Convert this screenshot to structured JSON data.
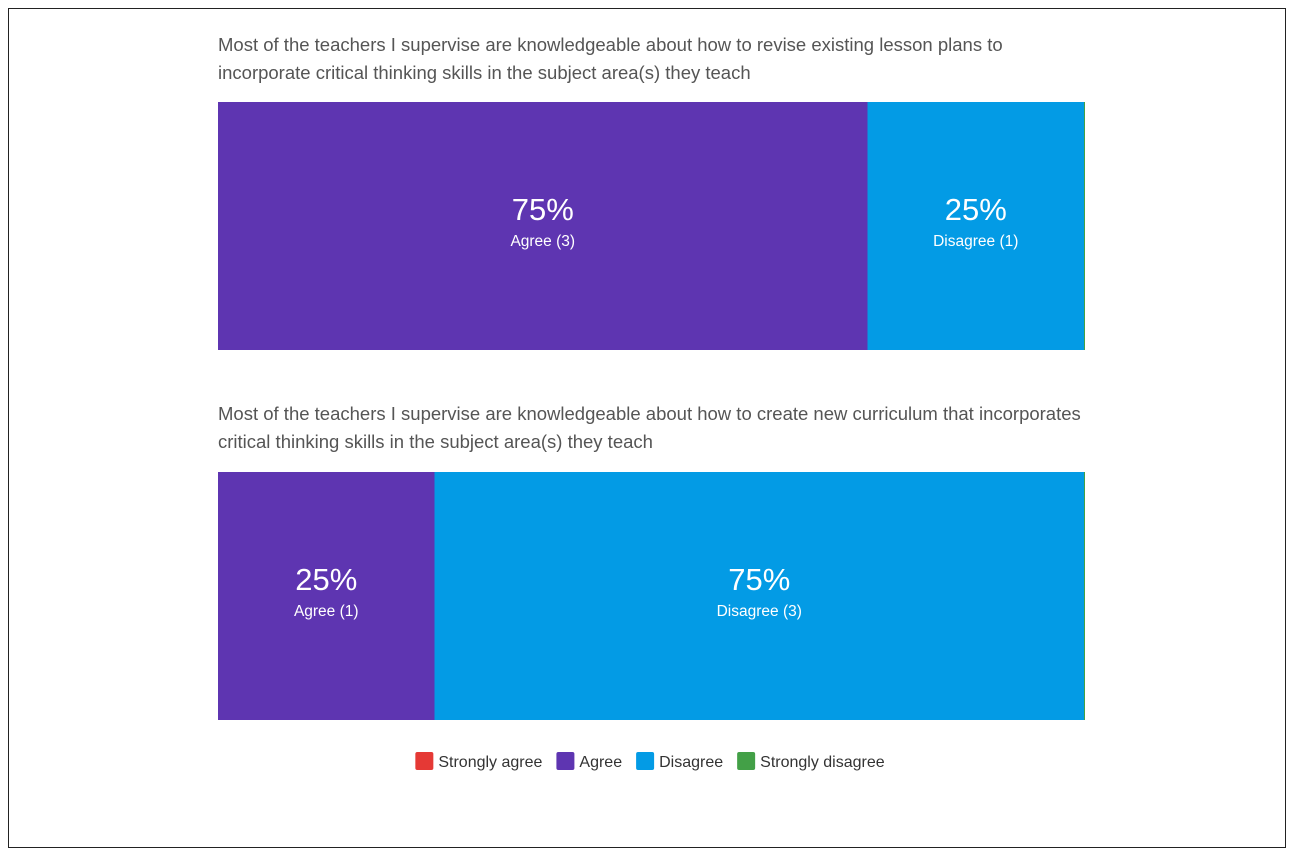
{
  "chart_data": [
    {
      "type": "stacked_bar_100",
      "title": "Most of the teachers I supervise are knowledgeable about how to revise existing lesson plans to incorporate critical thinking skills in the subject area(s) they teach",
      "xlim": [
        0,
        100
      ],
      "series": [
        {
          "name": "Strongly agree",
          "color": "#e53935",
          "values": [
            0
          ],
          "value_labels": [
            null
          ],
          "count_labels": [
            null
          ]
        },
        {
          "name": "Agree",
          "color": "#5e35b1",
          "values": [
            75
          ],
          "value_labels": [
            "75%"
          ],
          "count_labels": [
            "Agree (3)"
          ]
        },
        {
          "name": "Disagree",
          "color": "#039be5",
          "values": [
            25
          ],
          "value_labels": [
            "25%"
          ],
          "count_labels": [
            "Disagree (1)"
          ]
        },
        {
          "name": "Strongly disagree",
          "color": "#43a047",
          "values": [
            0
          ],
          "value_labels": [
            null
          ],
          "count_labels": [
            null
          ]
        }
      ]
    },
    {
      "type": "stacked_bar_100",
      "title": "Most of the teachers I supervise are knowledgeable about how to create new curriculum that incorporates critical thinking skills in the subject area(s) they teach",
      "xlim": [
        0,
        100
      ],
      "series": [
        {
          "name": "Strongly agree",
          "color": "#e53935",
          "values": [
            0
          ],
          "value_labels": [
            null
          ],
          "count_labels": [
            null
          ]
        },
        {
          "name": "Agree",
          "color": "#5e35b1",
          "values": [
            25
          ],
          "value_labels": [
            "25%"
          ],
          "count_labels": [
            "Agree (1)"
          ]
        },
        {
          "name": "Disagree",
          "color": "#039be5",
          "values": [
            75
          ],
          "value_labels": [
            "75%"
          ],
          "count_labels": [
            "Disagree (3)"
          ]
        },
        {
          "name": "Strongly disagree",
          "color": "#43a047",
          "values": [
            0
          ],
          "value_labels": [
            null
          ],
          "count_labels": [
            null
          ]
        }
      ]
    }
  ]
}
